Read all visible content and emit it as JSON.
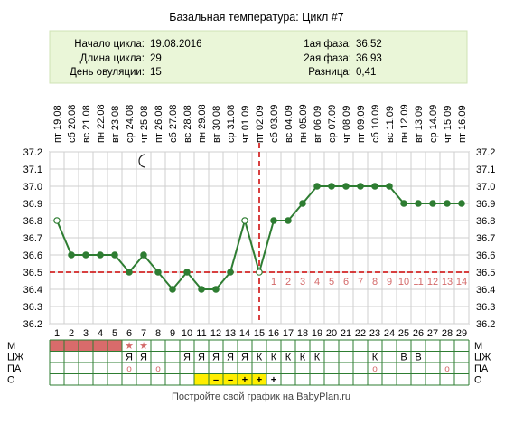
{
  "title": "Базальная температура: Цикл #7",
  "info": {
    "left": [
      {
        "label": "Начало цикла:",
        "value": "19.08.2016"
      },
      {
        "label": "Длина цикла:",
        "value": "29"
      },
      {
        "label": "День овуляции:",
        "value": "15"
      }
    ],
    "right": [
      {
        "label": "1ая фаза:",
        "value": "36.52"
      },
      {
        "label": "2ая фаза:",
        "value": "36.93"
      },
      {
        "label": "Разница:",
        "value": "0,41"
      }
    ]
  },
  "footer": "Постройте свой график на BabyPlan.ru",
  "colors": {
    "line": "#2e7d32",
    "point": "#2e7d32",
    "coverline": "#cc0000",
    "ovulation": "#cc0000",
    "period": "#d96b6b",
    "info_bg": "#eaf6d8",
    "phase_numbers": "#d46a6a",
    "highlight": "#ffee00"
  },
  "chart_data": {
    "type": "line",
    "title": "Базальная температура: Цикл #7",
    "x": [
      1,
      2,
      3,
      4,
      5,
      6,
      7,
      8,
      9,
      10,
      11,
      12,
      13,
      14,
      15,
      16,
      17,
      18,
      19,
      20,
      21,
      22,
      23,
      24,
      25,
      26,
      27,
      28,
      29
    ],
    "weekdays": [
      "пт",
      "сб",
      "вс",
      "пн",
      "вт",
      "ср",
      "чт",
      "пт",
      "сб",
      "вс",
      "пн",
      "вт",
      "ср",
      "чт",
      "пт",
      "сб",
      "вс",
      "пн",
      "вт",
      "ср",
      "чт",
      "пт",
      "сб",
      "вс",
      "пн",
      "вт",
      "ср",
      "чт",
      "пт"
    ],
    "dates": [
      "19.08",
      "20.08",
      "21.08",
      "22.08",
      "23.08",
      "24.08",
      "25.08",
      "26.08",
      "27.08",
      "28.08",
      "29.08",
      "30.08",
      "31.08",
      "01.09",
      "02.09",
      "03.09",
      "04.09",
      "05.09",
      "06.09",
      "07.09",
      "08.09",
      "09.09",
      "10.09",
      "11.09",
      "12.09",
      "13.09",
      "14.09",
      "15.09",
      "16.09"
    ],
    "series": [
      {
        "values": [
          36.8,
          36.6,
          36.6,
          36.6,
          36.6,
          36.5,
          36.6,
          36.5,
          36.4,
          36.5,
          36.4,
          36.4,
          36.5,
          36.8,
          36.5,
          36.8,
          36.8,
          36.9,
          37.0,
          37.0,
          37.0,
          37.0,
          37.0,
          37.0,
          36.9,
          36.9,
          36.9,
          36.9,
          36.9
        ],
        "open_points": [
          1,
          14,
          15
        ]
      }
    ],
    "ylim": [
      36.2,
      37.2
    ],
    "yticks": [
      "36.2",
      "36.3",
      "36.4",
      "36.5",
      "36.6",
      "36.7",
      "36.8",
      "36.9",
      "37.0",
      "37.1",
      "37.2"
    ],
    "coverline": 36.5,
    "ovulation_day": 15,
    "phase_numbers": [
      "1",
      "2",
      "3",
      "4",
      "5",
      "6",
      "7",
      "8",
      "9",
      "10",
      "11",
      "12",
      "13",
      "14"
    ],
    "moon_day": 7,
    "grid": true
  },
  "rows": [
    {
      "label": "М",
      "cells": [
        "",
        "",
        "",
        "",
        "",
        "★",
        "★",
        "",
        "",
        "",
        "",
        "",
        "",
        "",
        "",
        "",
        "",
        "",
        "",
        "",
        "",
        "",
        "",
        "",
        "",
        "",
        "",
        "",
        ""
      ],
      "period_days": [
        1,
        2,
        3,
        4,
        5
      ]
    },
    {
      "label": "ЦЖ",
      "cells": [
        "",
        "",
        "",
        "",
        "",
        "Я",
        "Я",
        "",
        "",
        "Я",
        "Я",
        "Я",
        "Я",
        "Я",
        "К",
        "К",
        "К",
        "К",
        "К",
        "",
        "",
        "",
        "К",
        "",
        "В",
        "В",
        "",
        "",
        ""
      ]
    },
    {
      "label": "ПА",
      "cells": [
        "",
        "",
        "",
        "",
        "",
        "о",
        "",
        "о",
        "",
        "",
        "",
        "",
        "",
        "",
        "",
        "",
        "",
        "",
        "",
        "",
        "",
        "",
        "о",
        "",
        "",
        "",
        "",
        "о",
        ""
      ]
    },
    {
      "label": "О",
      "cells": [
        "",
        "",
        "",
        "",
        "",
        "",
        "",
        "",
        "",
        "",
        "",
        "–",
        "–",
        "+",
        "+",
        "+",
        "",
        "",
        "",
        "",
        "",
        "",
        "",
        "",
        "",
        "",
        "",
        "",
        ""
      ],
      "highlight_days": [
        11,
        12,
        13,
        14,
        15
      ]
    }
  ]
}
